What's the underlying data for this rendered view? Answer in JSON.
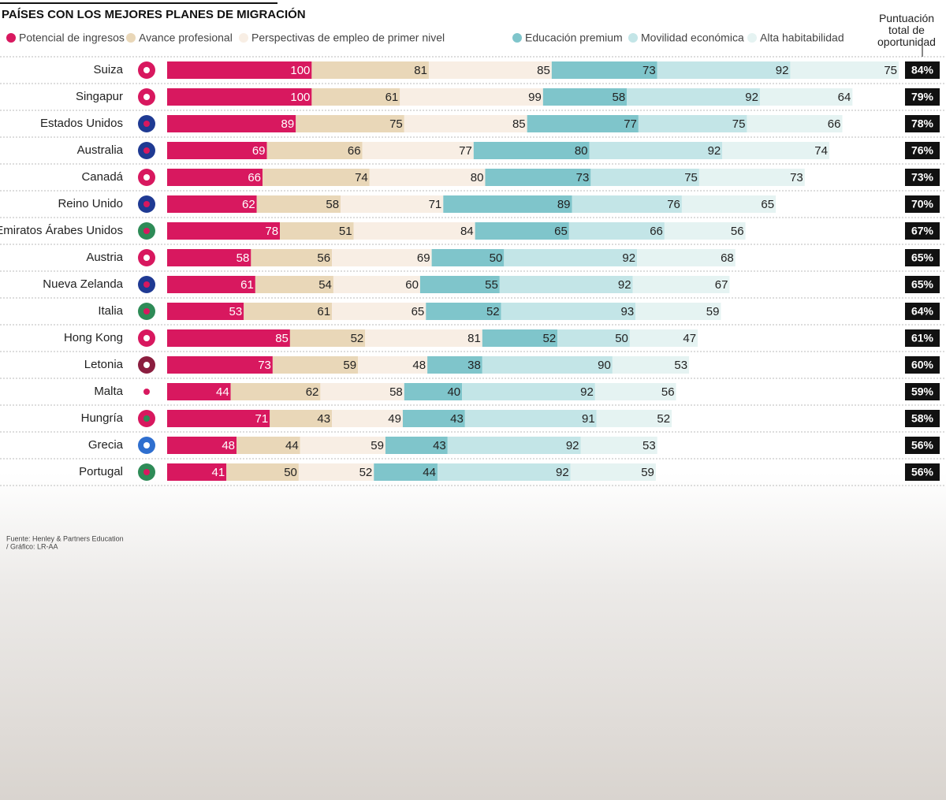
{
  "chart_data": {
    "type": "stacked-bar",
    "title": "PAÍSES CON LOS MEJORES PLANES DE MIGRACIÓN",
    "categories": [
      "Suiza",
      "Singapur",
      "Estados Unidos",
      "Australia",
      "Canadá",
      "Reino Unido",
      "Emiratos Árabes Unidos",
      "Austria",
      "Nueva Zelanda",
      "Italia",
      "Hong Kong",
      "Letonia",
      "Malta",
      "Hungría",
      "Grecia",
      "Portugal"
    ],
    "series": [
      {
        "name": "Potencial de ingresos",
        "color": "#d8185f",
        "values": [
          100,
          100,
          89,
          69,
          66,
          62,
          78,
          58,
          61,
          53,
          85,
          73,
          44,
          71,
          48,
          41
        ]
      },
      {
        "name": "Avance profesional",
        "color": "#e9d7b8",
        "values": [
          81,
          61,
          75,
          66,
          74,
          58,
          51,
          56,
          54,
          61,
          52,
          59,
          62,
          43,
          44,
          50
        ]
      },
      {
        "name": "Perspectivas de empleo de primer nivel",
        "color": "#f8eee4",
        "values": [
          85,
          99,
          85,
          77,
          80,
          71,
          84,
          69,
          60,
          65,
          81,
          48,
          58,
          49,
          59,
          52
        ]
      },
      {
        "name": "Educación premium",
        "color": "#7fc5cb",
        "values": [
          73,
          58,
          77,
          80,
          73,
          89,
          65,
          50,
          55,
          52,
          52,
          38,
          40,
          43,
          43,
          44
        ]
      },
      {
        "name": "Movilidad económica",
        "color": "#c3e5e7",
        "values": [
          92,
          92,
          75,
          92,
          75,
          76,
          66,
          92,
          92,
          93,
          50,
          90,
          92,
          91,
          92,
          92
        ]
      },
      {
        "name": "Alta habitabilidad",
        "color": "#e5f3f2",
        "values": [
          75,
          64,
          66,
          74,
          73,
          65,
          56,
          68,
          67,
          59,
          47,
          53,
          56,
          52,
          53,
          59
        ]
      }
    ],
    "total": {
      "name": "Puntuación total de oportunidad",
      "values": [
        84,
        79,
        78,
        76,
        73,
        70,
        67,
        65,
        65,
        64,
        61,
        60,
        59,
        58,
        56,
        56
      ],
      "value_labels": [
        "84%",
        "79%",
        "78%",
        "76%",
        "73%",
        "70%",
        "67%",
        "65%",
        "65%",
        "64%",
        "61%",
        "60%",
        "59%",
        "58%",
        "56%",
        "56%"
      ]
    },
    "source": [
      "Fuente: Henley & Partners Education",
      "/ Gráfico: LR-AA"
    ]
  }
}
